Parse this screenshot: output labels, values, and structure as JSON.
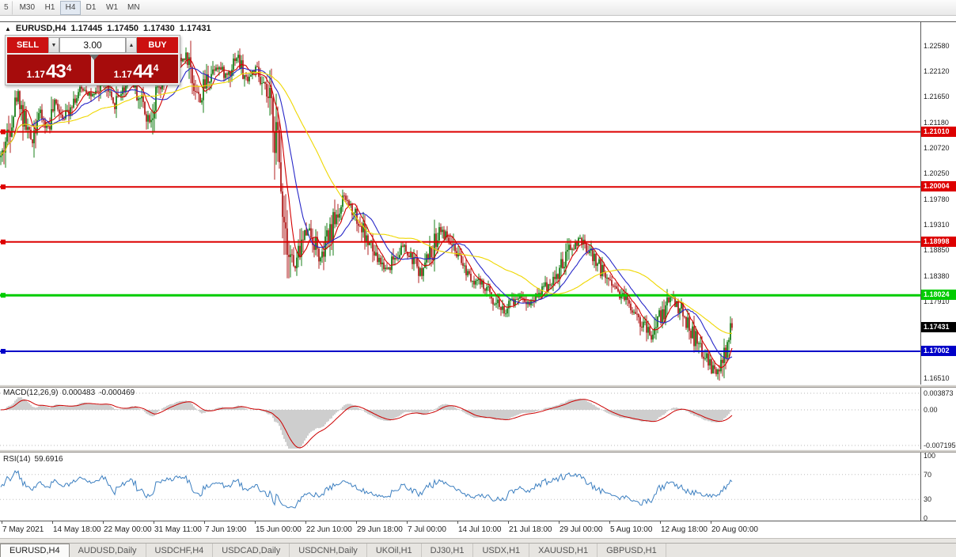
{
  "window": {
    "toolbar": {
      "timeframes": [
        "5",
        "M30",
        "H1",
        "H4",
        "D1",
        "W1",
        "MN"
      ],
      "active": "H4"
    }
  },
  "chart_header": {
    "toggle_icon": "▲",
    "symbol": "EURUSD,H4",
    "open": "1.17445",
    "high": "1.17450",
    "low": "1.17430",
    "close": "1.17431"
  },
  "trade_panel": {
    "sell_label": "SELL",
    "buy_label": "BUY",
    "volume": "3.00",
    "spinner_down": "▼",
    "spinner_up": "▲",
    "bid": {
      "prefix": "1.17",
      "pips": "43",
      "point": "4"
    },
    "ask": {
      "prefix": "1.17",
      "pips": "44",
      "point": "4"
    }
  },
  "price_axis": {
    "labels": [
      "1.22580",
      "1.22120",
      "1.21650",
      "1.21180",
      "1.20720",
      "1.20250",
      "1.19780",
      "1.19310",
      "1.18850",
      "1.18380",
      "1.17910",
      "1.16510"
    ]
  },
  "levels": {
    "lines": [
      {
        "price": "1.21010",
        "color": "#dd0000",
        "width": 2
      },
      {
        "price": "1.20004",
        "color": "#dd0000",
        "width": 2
      },
      {
        "price": "1.18998",
        "color": "#dd0000",
        "width": 2
      },
      {
        "price": "1.18024",
        "color": "#00cc00",
        "width": 3
      },
      {
        "price": "1.17002",
        "color": "#0000c8",
        "width": 2
      }
    ],
    "current_price": {
      "label": "1.17431",
      "color": "#000000"
    }
  },
  "indicators": {
    "macd": {
      "name": "MACD(12,26,9)",
      "value_main": "0.000483",
      "value_signal": "-0.000469",
      "axis": [
        "0.003873",
        "0.00",
        "-0.0071950"
      ],
      "histogram_color": "#c8c8c8",
      "signal_color": "#cc0000"
    },
    "rsi": {
      "name": "RSI(14)",
      "value": "59.6916",
      "axis": [
        "100",
        "70",
        "30",
        "0"
      ],
      "levels": [
        70,
        30
      ],
      "line_color": "#3c7fc0"
    }
  },
  "time_axis": {
    "labels": [
      "7 May 2021",
      "14 May 18:00",
      "22 May 00:00",
      "31 May 11:00",
      "7 Jun 19:00",
      "15 Jun 00:00",
      "22 Jun 10:00",
      "29 Jun 18:00",
      "7 Jul 00:00",
      "14 Jul 10:00",
      "21 Jul 18:00",
      "29 Jul 00:00",
      "5 Aug 10:00",
      "12 Aug 18:00",
      "20 Aug 00:00"
    ]
  },
  "tabs": [
    "EURUSD,H4",
    "AUDUSD,Daily",
    "USDCHF,H4",
    "USDCAD,Daily",
    "USDCNH,Daily",
    "UKOil,H1",
    "DJ30,H1",
    "USDX,H1",
    "XAUUSD,H1",
    "GBPUSD,H1"
  ],
  "active_tab": "EURUSD,H4",
  "chart_data": {
    "type": "candlestick",
    "symbol": "EURUSD",
    "period": "H4",
    "visible_price_range": [
      1.1651,
      1.2258
    ],
    "bars": 463,
    "up_color": "#1a7f1a",
    "down_color": "#b22222",
    "moving_averages": [
      {
        "period": 9,
        "color": "#d40000"
      },
      {
        "period": 20,
        "color": "#2828c8"
      },
      {
        "period": 56,
        "color": "#efd700"
      }
    ],
    "anchors": [
      [
        0,
        1.2055
      ],
      [
        0.0086,
        1.209
      ],
      [
        0.0162,
        1.214
      ],
      [
        0.0238,
        1.217
      ],
      [
        0.0324,
        1.212
      ],
      [
        0.0411,
        1.2088
      ],
      [
        0.0519,
        1.2135
      ],
      [
        0.0627,
        1.211
      ],
      [
        0.0757,
        1.215
      ],
      [
        0.0865,
        1.213
      ],
      [
        0.0995,
        1.216
      ],
      [
        0.1135,
        1.218
      ],
      [
        0.1276,
        1.2165
      ],
      [
        0.1405,
        1.2192
      ],
      [
        0.1535,
        1.215
      ],
      [
        0.1643,
        1.2175
      ],
      [
        0.1784,
        1.22
      ],
      [
        0.1924,
        1.2158
      ],
      [
        0.2032,
        1.2125
      ],
      [
        0.2162,
        1.2175
      ],
      [
        0.2292,
        1.2202
      ],
      [
        0.2432,
        1.2228
      ],
      [
        0.2541,
        1.224
      ],
      [
        0.2649,
        1.2188
      ],
      [
        0.2724,
        1.2158
      ],
      [
        0.2832,
        1.22
      ],
      [
        0.2941,
        1.2222
      ],
      [
        0.3081,
        1.2205
      ],
      [
        0.3222,
        1.2238
      ],
      [
        0.3351,
        1.2198
      ],
      [
        0.3481,
        1.2212
      ],
      [
        0.3589,
        1.218
      ],
      [
        0.3676,
        1.2155
      ],
      [
        0.3762,
        1.21
      ],
      [
        0.3827,
        1.201
      ],
      [
        0.3892,
        1.1935
      ],
      [
        0.3957,
        1.188
      ],
      [
        0.4022,
        1.185
      ],
      [
        0.4108,
        1.1895
      ],
      [
        0.4195,
        1.1925
      ],
      [
        0.427,
        1.1905
      ],
      [
        0.4378,
        1.1868
      ],
      [
        0.4486,
        1.191
      ],
      [
        0.4595,
        1.195
      ],
      [
        0.4703,
        1.1978
      ],
      [
        0.4811,
        1.1962
      ],
      [
        0.4919,
        1.193
      ],
      [
        0.5027,
        1.1898
      ],
      [
        0.5135,
        1.187
      ],
      [
        0.5276,
        1.1852
      ],
      [
        0.5384,
        1.1872
      ],
      [
        0.5492,
        1.189
      ],
      [
        0.5622,
        1.1868
      ],
      [
        0.5751,
        1.1845
      ],
      [
        0.5892,
        1.1882
      ],
      [
        0.6,
        1.1925
      ],
      [
        0.6108,
        1.1905
      ],
      [
        0.6249,
        1.1868
      ],
      [
        0.6378,
        1.1848
      ],
      [
        0.6486,
        1.183
      ],
      [
        0.6649,
        1.1812
      ],
      [
        0.6789,
        1.179
      ],
      [
        0.6897,
        1.1772
      ],
      [
        0.7005,
        1.1792
      ],
      [
        0.7114,
        1.1803
      ],
      [
        0.7222,
        1.1788
      ],
      [
        0.7351,
        1.1806
      ],
      [
        0.7459,
        1.182
      ],
      [
        0.7568,
        1.1832
      ],
      [
        0.7697,
        1.186
      ],
      [
        0.7805,
        1.189
      ],
      [
        0.7914,
        1.1902
      ],
      [
        0.8022,
        1.1886
      ],
      [
        0.813,
        1.1868
      ],
      [
        0.8238,
        1.1845
      ],
      [
        0.8324,
        1.183
      ],
      [
        0.8486,
        1.1805
      ],
      [
        0.8649,
        1.1778
      ],
      [
        0.8811,
        1.1745
      ],
      [
        0.8886,
        1.1726
      ],
      [
        0.9027,
        1.1765
      ],
      [
        0.9168,
        1.18
      ],
      [
        0.9276,
        1.178
      ],
      [
        0.9384,
        1.1755
      ],
      [
        0.9492,
        1.1722
      ],
      [
        0.96,
        1.1696
      ],
      [
        0.9708,
        1.1672
      ],
      [
        0.9795,
        1.1658
      ],
      [
        0.9881,
        1.1682
      ],
      [
        0.9946,
        1.1716
      ],
      [
        1,
        1.1743
      ]
    ]
  }
}
